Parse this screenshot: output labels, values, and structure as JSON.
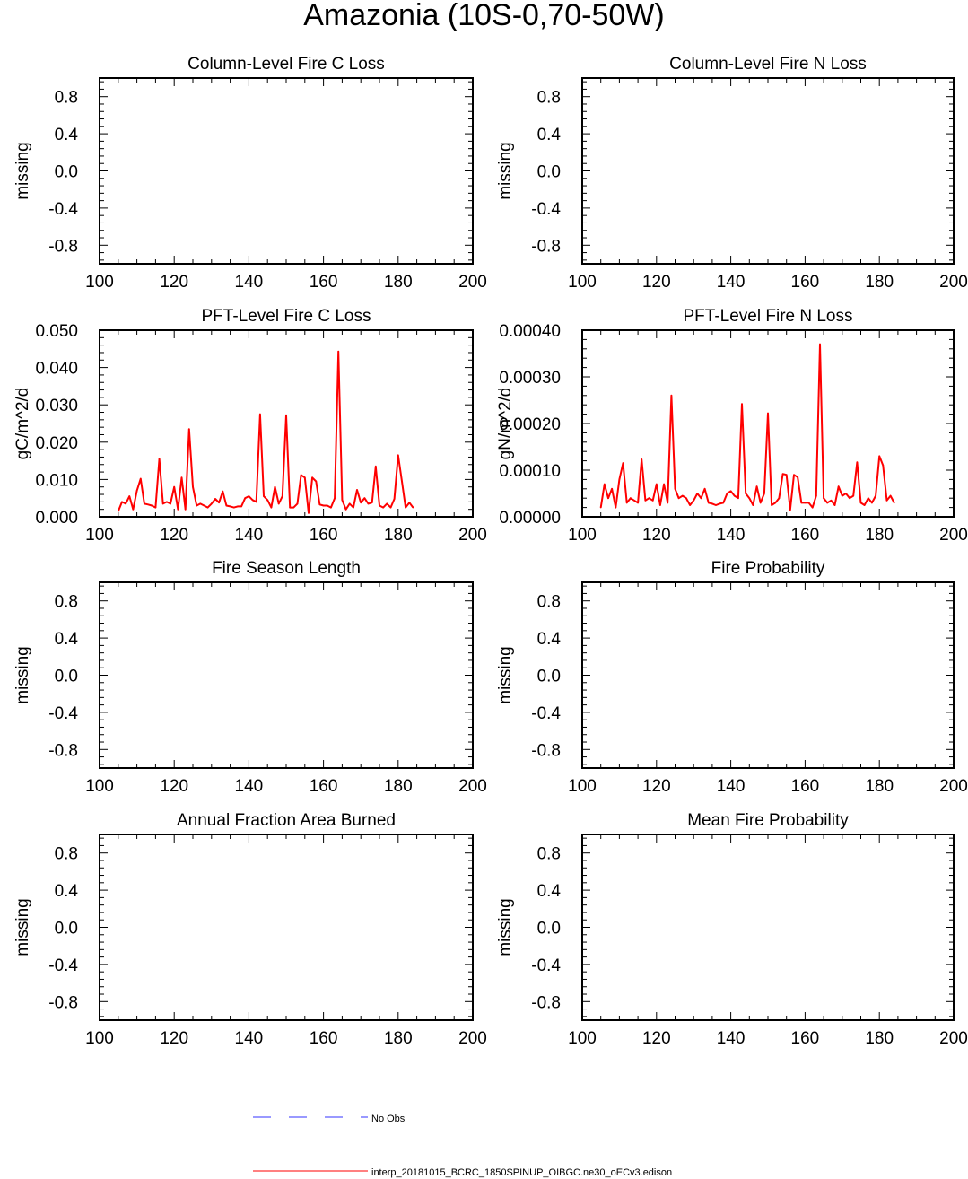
{
  "page": {
    "title": "Amazonia (10S-0,70-50W)"
  },
  "legend": {
    "items": [
      {
        "label": "No Obs",
        "color": "#3333ff",
        "style": "dashed"
      },
      {
        "label": "interp_20181015_BCRC_1850SPINUP_OIBGC.ne30_oECv3.edison",
        "color": "#ff0000",
        "style": "solid"
      }
    ]
  },
  "chart_data": [
    {
      "type": "line",
      "title": "Column-Level Fire C Loss",
      "ylabel": "missing",
      "xlim": [
        100,
        200
      ],
      "ylim": [
        -1,
        1
      ],
      "xticks": [
        "100",
        "120",
        "140",
        "160",
        "180",
        "200"
      ],
      "yticks": [
        "0.8",
        "0.4",
        "0.0",
        "-0.4",
        "-0.8"
      ],
      "series": []
    },
    {
      "type": "line",
      "title": "Column-Level Fire N Loss",
      "ylabel": "missing",
      "xlim": [
        100,
        200
      ],
      "ylim": [
        -1,
        1
      ],
      "xticks": [
        "100",
        "120",
        "140",
        "160",
        "180",
        "200"
      ],
      "yticks": [
        "0.8",
        "0.4",
        "0.0",
        "-0.4",
        "-0.8"
      ],
      "series": []
    },
    {
      "type": "line",
      "title": "PFT-Level Fire C Loss",
      "ylabel": "gC/m^2/d",
      "xlim": [
        100,
        200
      ],
      "ylim": [
        0,
        0.05
      ],
      "xticks": [
        "100",
        "120",
        "140",
        "160",
        "180",
        "200"
      ],
      "yticks": [
        "0.050",
        "0.040",
        "0.030",
        "0.020",
        "0.010",
        "0.000"
      ],
      "series": [
        {
          "color": "#ff0000",
          "x": [
            105,
            106,
            107,
            108,
            109,
            110,
            111,
            112,
            113,
            114,
            115,
            116,
            117,
            118,
            119,
            120,
            121,
            122,
            123,
            124,
            125,
            126,
            127,
            128,
            129,
            130,
            131,
            132,
            133,
            134,
            135,
            136,
            137,
            138,
            139,
            140,
            141,
            142,
            143,
            144,
            145,
            146,
            147,
            148,
            149,
            150,
            151,
            152,
            153,
            154,
            155,
            156,
            157,
            158,
            159,
            160,
            161,
            162,
            163,
            164,
            165,
            166,
            167,
            168,
            169,
            170,
            171,
            172,
            173,
            174,
            175,
            176,
            177,
            178,
            179,
            180,
            181,
            182,
            183,
            184
          ],
          "y": [
            0.0015,
            0.004,
            0.0035,
            0.0055,
            0.002,
            0.007,
            0.0102,
            0.0035,
            0.0033,
            0.003,
            0.0025,
            0.0155,
            0.0035,
            0.004,
            0.0035,
            0.008,
            0.002,
            0.0105,
            0.002,
            0.0235,
            0.008,
            0.003,
            0.0035,
            0.003,
            0.0025,
            0.0035,
            0.0048,
            0.0038,
            0.0068,
            0.003,
            0.0028,
            0.0025,
            0.0028,
            0.0028,
            0.005,
            0.0055,
            0.0045,
            0.004,
            0.0275,
            0.0055,
            0.0045,
            0.0025,
            0.008,
            0.0035,
            0.0055,
            0.0272,
            0.0025,
            0.0025,
            0.0035,
            0.0112,
            0.0105,
            0.001,
            0.0105,
            0.0095,
            0.0033,
            0.003,
            0.003,
            0.0025,
            0.005,
            0.0443,
            0.0045,
            0.002,
            0.0035,
            0.0025,
            0.0072,
            0.0038,
            0.005,
            0.0035,
            0.0038,
            0.0135,
            0.003,
            0.0025,
            0.0035,
            0.0025,
            0.0048,
            0.0165,
            0.0095,
            0.0025,
            0.0038,
            0.0025
          ]
        }
      ]
    },
    {
      "type": "line",
      "title": "PFT-Level Fire N Loss",
      "ylabel": "gN/m^2/d",
      "xlim": [
        100,
        200
      ],
      "ylim": [
        0,
        0.0004
      ],
      "xticks": [
        "100",
        "120",
        "140",
        "160",
        "180",
        "200"
      ],
      "yticks": [
        "0.00040",
        "0.00030",
        "0.00020",
        "0.00010",
        "0.00000"
      ],
      "series": [
        {
          "color": "#ff0000",
          "x": [
            105,
            106,
            107,
            108,
            109,
            110,
            111,
            112,
            113,
            114,
            115,
            116,
            117,
            118,
            119,
            120,
            121,
            122,
            123,
            124,
            125,
            126,
            127,
            128,
            129,
            130,
            131,
            132,
            133,
            134,
            135,
            136,
            137,
            138,
            139,
            140,
            141,
            142,
            143,
            144,
            145,
            146,
            147,
            148,
            149,
            150,
            151,
            152,
            153,
            154,
            155,
            156,
            157,
            158,
            159,
            160,
            161,
            162,
            163,
            164,
            165,
            166,
            167,
            168,
            169,
            170,
            171,
            172,
            173,
            174,
            175,
            176,
            177,
            178,
            179,
            180,
            181,
            182,
            183,
            184
          ],
          "y": [
            2e-05,
            7e-05,
            4e-05,
            6e-05,
            2e-05,
            8e-05,
            0.000115,
            3e-05,
            4e-05,
            3.5e-05,
            3e-05,
            0.000123,
            3.5e-05,
            4e-05,
            3.5e-05,
            7e-05,
            2.5e-05,
            7e-05,
            3e-05,
            0.00026,
            6e-05,
            4e-05,
            4.5e-05,
            4e-05,
            2.5e-05,
            3.5e-05,
            5e-05,
            4e-05,
            6e-05,
            3e-05,
            2.8e-05,
            2.5e-05,
            2.8e-05,
            3e-05,
            5e-05,
            5.5e-05,
            4.5e-05,
            4e-05,
            0.000242,
            5e-05,
            4e-05,
            2.5e-05,
            6.5e-05,
            3e-05,
            5e-05,
            0.000222,
            2.5e-05,
            3e-05,
            4e-05,
            9.2e-05,
            9e-05,
            1.5e-05,
            9e-05,
            8.5e-05,
            3e-05,
            3e-05,
            3e-05,
            2e-05,
            4.5e-05,
            0.00037,
            4e-05,
            3e-05,
            3.5e-05,
            2.5e-05,
            6.5e-05,
            4.5e-05,
            5e-05,
            4e-05,
            4.5e-05,
            0.000117,
            3e-05,
            2.5e-05,
            4e-05,
            3e-05,
            4.5e-05,
            0.00013,
            0.00011,
            3.5e-05,
            4.5e-05,
            3e-05
          ]
        }
      ]
    },
    {
      "type": "line",
      "title": "Fire Season Length",
      "ylabel": "missing",
      "xlim": [
        100,
        200
      ],
      "ylim": [
        -1,
        1
      ],
      "xticks": [
        "100",
        "120",
        "140",
        "160",
        "180",
        "200"
      ],
      "yticks": [
        "0.8",
        "0.4",
        "0.0",
        "-0.4",
        "-0.8"
      ],
      "series": []
    },
    {
      "type": "line",
      "title": "Fire Probability",
      "ylabel": "missing",
      "xlim": [
        100,
        200
      ],
      "ylim": [
        -1,
        1
      ],
      "xticks": [
        "100",
        "120",
        "140",
        "160",
        "180",
        "200"
      ],
      "yticks": [
        "0.8",
        "0.4",
        "0.0",
        "-0.4",
        "-0.8"
      ],
      "series": []
    },
    {
      "type": "line",
      "title": "Annual Fraction Area Burned",
      "ylabel": "missing",
      "xlim": [
        100,
        200
      ],
      "ylim": [
        -1,
        1
      ],
      "xticks": [
        "100",
        "120",
        "140",
        "160",
        "180",
        "200"
      ],
      "yticks": [
        "0.8",
        "0.4",
        "0.0",
        "-0.4",
        "-0.8"
      ],
      "series": []
    },
    {
      "type": "line",
      "title": "Mean Fire Probability",
      "ylabel": "missing",
      "xlim": [
        100,
        200
      ],
      "ylim": [
        -1,
        1
      ],
      "xticks": [
        "100",
        "120",
        "140",
        "160",
        "180",
        "200"
      ],
      "yticks": [
        "0.8",
        "0.4",
        "0.0",
        "-0.4",
        "-0.8"
      ],
      "series": []
    }
  ]
}
